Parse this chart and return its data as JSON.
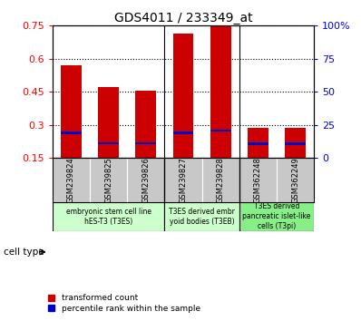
{
  "title": "GDS4011 / 233349_at",
  "samples": [
    "GSM239824",
    "GSM239825",
    "GSM239826",
    "GSM239827",
    "GSM239828",
    "GSM362248",
    "GSM362249"
  ],
  "transformed_count": [
    0.57,
    0.47,
    0.455,
    0.715,
    0.75,
    0.285,
    0.287
  ],
  "percentile_rank": [
    0.263,
    0.215,
    0.215,
    0.263,
    0.273,
    0.213,
    0.213
  ],
  "ylim_left": [
    0.15,
    0.75
  ],
  "yticks_left": [
    0.15,
    0.3,
    0.45,
    0.6,
    0.75
  ],
  "yticks_right_labels": [
    "0",
    "25",
    "50",
    "75",
    "100%"
  ],
  "bar_color": "#cc0000",
  "percentile_color": "#0000cc",
  "bar_width": 0.55,
  "groups": [
    {
      "label": "embryonic stem cell line\nhES-T3 (T3ES)",
      "start": 0,
      "end": 3,
      "color": "#ccffcc"
    },
    {
      "label": "T3ES derived embr\nyoid bodies (T3EB)",
      "start": 3,
      "end": 5,
      "color": "#ccffcc"
    },
    {
      "label": "T3ES derived\npancreatic islet-like\ncells (T3pi)",
      "start": 5,
      "end": 7,
      "color": "#88ee88"
    }
  ],
  "cell_type_label": "cell type",
  "legend_red": "transformed count",
  "legend_blue": "percentile rank within the sample",
  "background_color": "#ffffff"
}
